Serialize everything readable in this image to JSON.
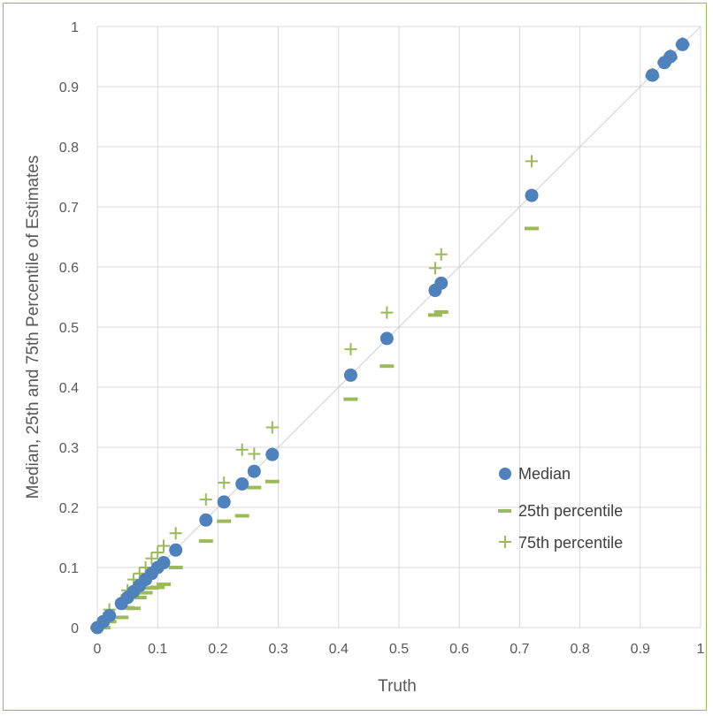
{
  "chart_data": {
    "type": "scatter",
    "title": "",
    "xlabel": "Truth",
    "ylabel": "Median, 25th and 75th Percentile of Estimates",
    "xlim": [
      0,
      1
    ],
    "ylim": [
      0,
      1
    ],
    "x_ticks": [
      "0",
      "0.1",
      "0.2",
      "0.3",
      "0.4",
      "0.5",
      "0.6",
      "0.7",
      "0.8",
      "0.9",
      "1"
    ],
    "y_ticks": [
      "0",
      "0.1",
      "0.2",
      "0.3",
      "0.4",
      "0.5",
      "0.6",
      "0.7",
      "0.8",
      "0.9",
      "1"
    ],
    "grid": true,
    "reference_line": {
      "from": [
        0,
        0
      ],
      "to": [
        1,
        1
      ],
      "color": "#c8d0da"
    },
    "legend_position": "right",
    "series": [
      {
        "name": "Median",
        "marker": "circle",
        "color": "#4f81bd",
        "x": [
          0,
          0.01,
          0.02,
          0.04,
          0.05,
          0.06,
          0.07,
          0.08,
          0.09,
          0.1,
          0.11,
          0.13,
          0.18,
          0.21,
          0.24,
          0.26,
          0.29,
          0.42,
          0.48,
          0.56,
          0.57,
          0.72,
          0.92,
          0.94,
          0.95,
          0.97
        ],
        "y": [
          0,
          0.01,
          0.02,
          0.04,
          0.05,
          0.06,
          0.07,
          0.08,
          0.09,
          0.1,
          0.108,
          0.129,
          0.179,
          0.209,
          0.239,
          0.26,
          0.288,
          0.42,
          0.481,
          0.561,
          0.573,
          0.719,
          0.919,
          0.94,
          0.95,
          0.97
        ]
      },
      {
        "name": "25th percentile",
        "marker": "dash",
        "color": "#9bbb59",
        "x": [
          0,
          0.01,
          0.02,
          0.04,
          0.05,
          0.06,
          0.07,
          0.08,
          0.09,
          0.1,
          0.11,
          0.13,
          0.18,
          0.21,
          0.24,
          0.26,
          0.29,
          0.42,
          0.48,
          0.56,
          0.57,
          0.72,
          0.92,
          0.94,
          0.95,
          0.97
        ],
        "y": [
          0,
          0.0,
          0.01,
          0.017,
          0.033,
          0.032,
          0.05,
          0.058,
          0.066,
          0.067,
          0.072,
          0.1,
          0.144,
          0.177,
          0.186,
          0.233,
          0.243,
          0.38,
          0.435,
          0.52,
          0.525,
          0.664,
          0.917,
          0.94,
          0.948,
          0.97
        ]
      },
      {
        "name": "75th percentile",
        "marker": "plus",
        "color": "#9bbb59",
        "x": [
          0,
          0.01,
          0.02,
          0.04,
          0.05,
          0.06,
          0.07,
          0.08,
          0.09,
          0.1,
          0.11,
          0.13,
          0.18,
          0.21,
          0.24,
          0.26,
          0.29,
          0.42,
          0.48,
          0.56,
          0.57,
          0.72,
          0.92,
          0.94,
          0.95,
          0.97
        ],
        "y": [
          0.0,
          0.015,
          0.03,
          0.045,
          0.062,
          0.08,
          0.09,
          0.1,
          0.115,
          0.125,
          0.136,
          0.157,
          0.213,
          0.241,
          0.296,
          0.289,
          0.333,
          0.463,
          0.524,
          0.598,
          0.621,
          0.776,
          0.921,
          0.943,
          0.952,
          0.972
        ]
      }
    ]
  }
}
